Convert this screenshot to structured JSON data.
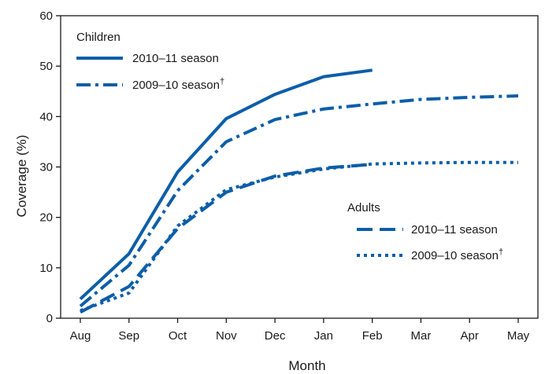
{
  "chart_data": {
    "type": "line",
    "xlabel": "Month",
    "ylabel": "Coverage (%)",
    "categories": [
      "Aug",
      "Sep",
      "Oct",
      "Nov",
      "Dec",
      "Jan",
      "Feb",
      "Mar",
      "Apr",
      "May"
    ],
    "ylim": [
      0,
      60
    ],
    "yticks": [
      0,
      10,
      20,
      30,
      40,
      50,
      60
    ],
    "grid": false,
    "line_color": "#0b5ea8",
    "legend_groups": [
      {
        "title": "Children",
        "placement": "top-left",
        "entries": [
          {
            "label": "2010–11 season",
            "series_index": 0
          },
          {
            "label": "2009–10 season",
            "superscript": "†",
            "series_index": 1
          }
        ]
      },
      {
        "title": "Adults",
        "placement": "bottom-right",
        "entries": [
          {
            "label": "2010–11 season",
            "series_index": 2
          },
          {
            "label": "2009–10 season",
            "superscript": "†",
            "series_index": 3
          }
        ]
      }
    ],
    "series": [
      {
        "group": "Children",
        "season": "2010–11",
        "style": "solid",
        "values": [
          3.8,
          12.8,
          29.0,
          39.6,
          44.4,
          47.9,
          49.2,
          null,
          null,
          null
        ]
      },
      {
        "group": "Children",
        "season": "2009–10",
        "style": "dash-dot",
        "values": [
          2.4,
          10.5,
          25.3,
          35.0,
          39.4,
          41.5,
          42.5,
          43.4,
          43.8,
          44.1
        ]
      },
      {
        "group": "Adults",
        "season": "2010–11",
        "style": "dashed",
        "values": [
          1.2,
          6.3,
          17.8,
          25.0,
          28.2,
          29.8,
          30.5,
          null,
          null,
          null
        ]
      },
      {
        "group": "Adults",
        "season": "2009–10",
        "style": "dotted",
        "values": [
          1.5,
          5.0,
          18.3,
          25.5,
          28.0,
          29.6,
          30.6,
          30.8,
          30.9,
          30.9
        ]
      }
    ]
  }
}
